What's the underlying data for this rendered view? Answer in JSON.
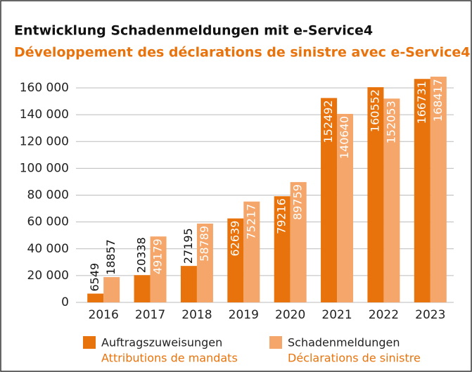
{
  "chart_data": {
    "type": "bar",
    "title": "Entwicklung Schadenmeldungen mit e-Service4",
    "subtitle": "Développement des déclarations de sinistre avec e-Service4",
    "categories": [
      "2016",
      "2017",
      "2018",
      "2019",
      "2020",
      "2021",
      "2022",
      "2023"
    ],
    "series": [
      {
        "name": "Auftragszuweisungen",
        "subname": "Attributions de mandats",
        "color": "#e8730c",
        "values": [
          6549,
          20338,
          27195,
          62639,
          79216,
          152492,
          160552,
          166731
        ]
      },
      {
        "name": "Schadenmeldungen",
        "subname": "Déclarations de sinistre",
        "color": "#f5a66a",
        "values": [
          18857,
          49179,
          58789,
          75217,
          89759,
          140640,
          152053,
          168417
        ]
      }
    ],
    "ylim": [
      0,
      170000
    ],
    "yticks": [
      0,
      {
        "value": 20000,
        "label": "20 000"
      },
      {
        "value": 40000,
        "label": "40 000"
      },
      {
        "value": 60000,
        "label": "60 000"
      },
      {
        "value": 80000,
        "label": "80 000"
      },
      {
        "value": 100000,
        "label": "100 000"
      },
      {
        "value": 120000,
        "label": "120 000"
      },
      {
        "value": 140000,
        "label": "140 000"
      },
      {
        "value": 160000,
        "label": "160 000"
      }
    ],
    "grid": true
  }
}
